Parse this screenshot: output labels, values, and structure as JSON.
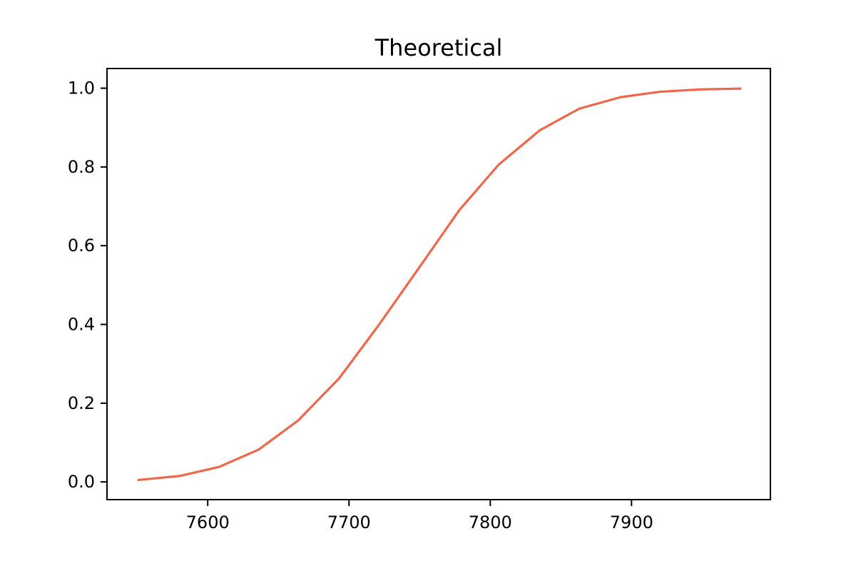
{
  "chart_data": {
    "type": "line",
    "title": "Theoretical",
    "xlabel": "",
    "ylabel": "",
    "xlim": [
      7528.7,
      7998.3
    ],
    "ylim": [
      -0.045,
      1.05
    ],
    "xticks": [
      7600,
      7700,
      7800,
      7900
    ],
    "yticks": [
      0.0,
      0.2,
      0.4,
      0.6,
      0.8,
      1.0
    ],
    "xtick_labels": [
      "7600",
      "7700",
      "7800",
      "7900"
    ],
    "ytick_labels": [
      "0.0",
      "0.2",
      "0.4",
      "0.6",
      "0.8",
      "1.0"
    ],
    "grid": false,
    "legend": "none",
    "series": [
      {
        "color": "#f0664a",
        "x": [
          7551,
          7580,
          7608,
          7636,
          7664,
          7693,
          7721,
          7750,
          7778,
          7806,
          7835,
          7863,
          7892,
          7920,
          7949,
          7977
        ],
        "y": [
          0.005,
          0.015,
          0.038,
          0.082,
          0.156,
          0.263,
          0.398,
          0.546,
          0.69,
          0.806,
          0.893,
          0.948,
          0.977,
          0.991,
          0.997,
          0.999
        ]
      }
    ]
  }
}
